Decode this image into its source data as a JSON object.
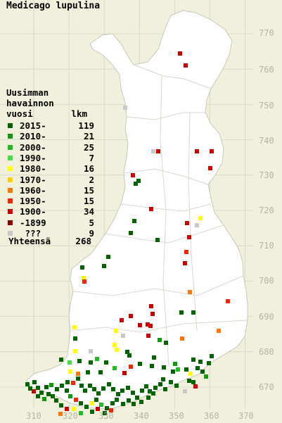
{
  "title": "Medicago lupulina",
  "legend": {
    "heading": [
      "Uusimman",
      "havainnon"
    ],
    "col_label_period": "vuosi",
    "col_label_count": "lkm",
    "rows": [
      {
        "label": "2015-",
        "count": "119",
        "color": "#006400"
      },
      {
        "label": "2010-",
        "count": "21",
        "color": "#119911"
      },
      {
        "label": "2000-",
        "count": "25",
        "color": "#22bb22"
      },
      {
        "label": "1990-",
        "count": "7",
        "color": "#44dd44"
      },
      {
        "label": "1980-",
        "count": "16",
        "color": "#ffff00"
      },
      {
        "label": "1970-",
        "count": "2",
        "color": "#ffcc00"
      },
      {
        "label": "1960-",
        "count": "15",
        "color": "#ff7700"
      },
      {
        "label": "1950-",
        "count": "15",
        "color": "#ff2200"
      },
      {
        "label": "1900-",
        "count": "34",
        "color": "#cc0000"
      },
      {
        "label": "-1899",
        "count": "5",
        "color": "#880000"
      },
      {
        "label": " ???",
        "count": "9",
        "color": "#c8c8c8"
      }
    ],
    "total_label": "Yhteensä",
    "total_count": "268"
  },
  "grid": {
    "north_labels": [
      "770",
      "760",
      "750",
      "740",
      "730",
      "720",
      "710",
      "700",
      "690",
      "680",
      "670"
    ],
    "east_labels": [
      "310",
      "320",
      "330",
      "340",
      "350",
      "360",
      "370"
    ]
  },
  "colors": {
    "background": "#f0f0dc",
    "land": "#ffffff",
    "gridline": "#d4d4c4",
    "border": "#c8c8b8",
    "grid_text": "#b4b4a6"
  }
}
